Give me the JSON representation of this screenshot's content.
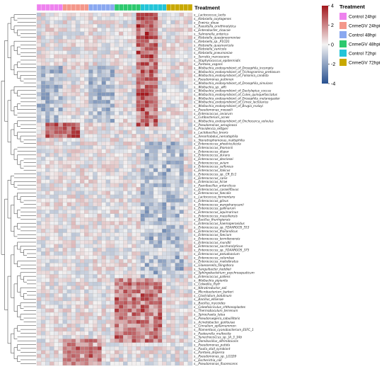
{
  "chart_data": {
    "type": "heatmap",
    "annotation_title": "Treatment",
    "legend_title": "Treatment",
    "treatments": [
      {
        "label": "Control 24hpi",
        "color": "#ee82ee"
      },
      {
        "label": "CnmeGV 24hpi",
        "color": "#f4978a"
      },
      {
        "label": "Control 48hpi",
        "color": "#8aa8f0"
      },
      {
        "label": "CnmeGV 48hpi",
        "color": "#2cc96e"
      },
      {
        "label": "Control 72hpi",
        "color": "#22c4d8"
      },
      {
        "label": "CnmeGV 72hpi",
        "color": "#c8a800"
      }
    ],
    "columns_per_treatment": 6,
    "color_scale": {
      "ticks": [
        4,
        2,
        0,
        -2,
        -4
      ],
      "min": -4,
      "max": 4,
      "low": "#27508f",
      "mid": "#f4f3f3",
      "high": "#a2171c"
    },
    "rows": [
      "s__Lactococcus_lactis",
      "s__Klebsiella_oxytogenes",
      "s__Erwinia_dieae",
      "s__Raoultella_ornithinolytica",
      "s__Enterobacter_cloacae",
      "s__Salmonella_enterica",
      "s__Klebsiella_quasipneumoniae",
      "s__Klebsiella_sp._P1CD1",
      "s__Klebsiella_quasivaricola",
      "s__Klebsiella_variicola",
      "s__Klebsiella_pneumoniae",
      "s__Serratia_marcescens",
      "s__Staphylococcus_epidermidis",
      "s__Pantoea_vagans",
      "s__Wolbachia_endosymbiont_of_Drosophila_incompta",
      "s__Wolbachia_endosymbiont_of_Trichogramma_pretiosum",
      "s__Wolbachia_endosymbiont_of_Folsomia_candida",
      "s__Pseudomonas_putinnen",
      "s__Wolbachia_endosymbiont_of_Drosophila_simulans",
      "s__Wolbachia_sp._wRi",
      "s__Wolbachia_endosymbiont_of_Dactylopius_coccus",
      "s__Wolbachia_endosymbiont_of_Culex_quinquefasciatus",
      "s__Wolbachia_endosymbiont_of_Drosophila_melanogaster",
      "s__Wolbachia_endosymbiont_of_Cimex_lectularius",
      "s__Wolbachia_endosymbiont_of_Brugia_malayi",
      "s__Pseudomonas_mosselii",
      "s__Enterococcus_cecorum",
      "s__Cutibacterium_acnes",
      "s__Wolbachia_endosymbiont_of_Onchocerca_volvulus",
      "s__Pseudomonas_aeruginosa",
      "s__Providencia_rettgeri",
      "s__Lactobacillus_brevis",
      "s__Xenorhabdus_nematophila",
      "s__Stenotrophomonas_maltophilia",
      "s__Enterococcus_phoeniculicola",
      "s__Enterococcus_thomonii",
      "s__Enterococcus_dispar",
      "s__Enterococcus_durans",
      "s__Enterococcus_devriesei",
      "s__Enterococcus_avium",
      "s__Enterococcus_sulfureus",
      "s__Enterococcus_italicus",
      "s__Enterococcus_sp._CR_Ec1",
      "s__Enterococcus_canis",
      "s__Enterococcus_hirae",
      "s__Paenibacillus_antarcticus",
      "s__Enterococcus_casseliflavus",
      "s__Enterococcus_faecalis",
      "s__Lactococcus_fermentans",
      "s__Enterococcus_gilvus",
      "s__Enterococcus_wangshanyuanii",
      "s__Enterococcus_gallinarum",
      "s__Enterococcus_aquimarinus",
      "s__Enterococcus_massiliensis",
      "s__Bacillus_thuringiensis",
      "s__Enterococcus_haemoperoxidus",
      "s__Enterococcus_sp._FDAARGOS_553",
      "s__Enterococcus_thailandicus",
      "s__Enterococcus_faecium",
      "s__Enterococcus_termitenensis",
      "s__Enterococcus_mundtii",
      "s__Enterococcus_saccharolyticus",
      "s__Enterococcus_sp._FDAARGOS_375",
      "s__Enterococcus_pseudoavium",
      "s__Enterococcus_columbae",
      "s__Enterococcus_malodoratus",
      "s__Glaesserella_tilingshora",
      "s__Sanguibacter_keddieii",
      "s__Sphingobacterium_psychroaquaticum",
      "s__Enterococcus_pallens",
      "s__Wolbachia_pipientis",
      "s__Colwellia_rhyfr",
      "s__Nitratireductor_soli",
      "s__Microbacterium_barkeri",
      "s__Clostridium_botulinum",
      "s__Bacillus_ellsenae",
      "s__Bacillus_mycoides",
      "s__Coleofasciculus_chthonoplastes",
      "s__Thermobaculum_terrenum",
      "s__Spirochaeta_lutea",
      "s__Pseudoruegeria_sabulilitoris",
      "s__Acinetobacter_guillouiae",
      "s__Cinnalium_epilamummon",
      "s__filamentous_cyanobacterium_ESFC_1",
      "s__Pasteurella_multocida",
      "s__Synechococcus_sp._JA_3_3Ab",
      "s__Domibacillus_alfrimdovaris",
      "s__Pseudomonas_putida",
      "s__Paulla_stall_symbiont",
      "s__Pantoea_dispersa",
      "s__Pseudomonas_sp._LG1D9",
      "s__Escherichia_coli",
      "s__Pseudomonas_fluorescens"
    ]
  }
}
